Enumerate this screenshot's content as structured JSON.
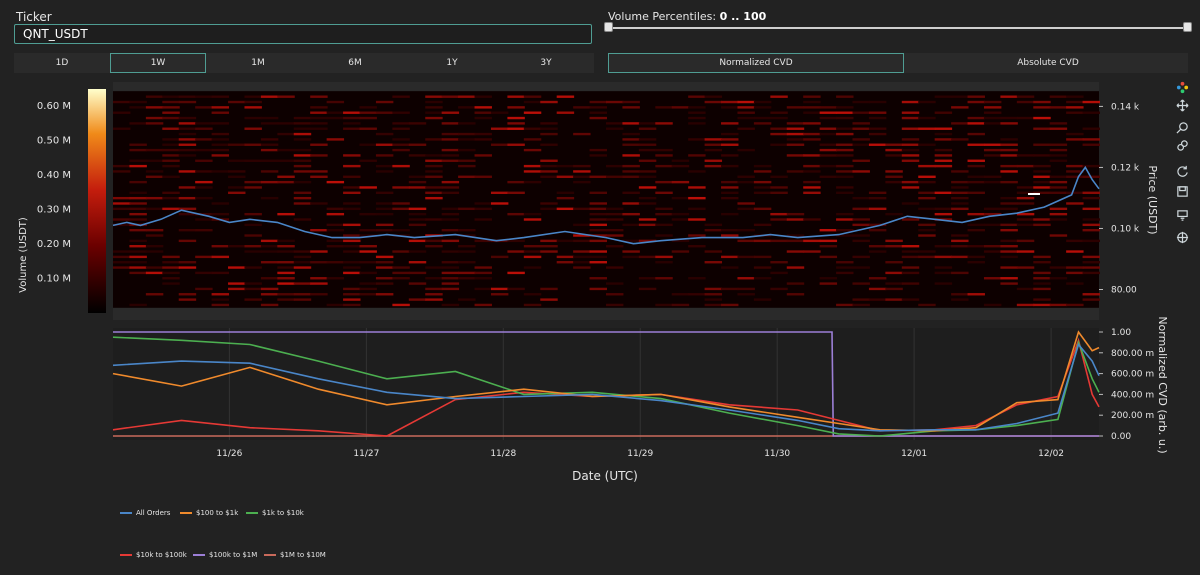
{
  "ticker": {
    "label": "Ticker",
    "value": "QNT_USDT"
  },
  "volume_filter": {
    "label": "Volume Percentiles: ",
    "range": "0 .. 100",
    "min": 0,
    "max": 100
  },
  "timeframes": [
    {
      "label": "1D",
      "active": false
    },
    {
      "label": "1W",
      "active": true
    },
    {
      "label": "1M",
      "active": false
    },
    {
      "label": "6M",
      "active": false
    },
    {
      "label": "1Y",
      "active": false
    },
    {
      "label": "3Y",
      "active": false
    }
  ],
  "cvd_modes": [
    {
      "label": "Normalized CVD",
      "active": true
    },
    {
      "label": "Absolute CVD",
      "active": false
    }
  ],
  "toolbar_icons": [
    "plotly-logo-icon",
    "pan-icon",
    "zoom-icon",
    "reset-zoom-icon",
    "autoscale-icon",
    "save-image-icon",
    "hover-compare-icon",
    "crosshair-icon"
  ],
  "colors": {
    "accent": "#4f9d93",
    "price_line": "#4a86c8",
    "background": "#222222",
    "heatmap_dark": "#000000",
    "heatmap_hot": "#b01a10"
  },
  "chart_data": [
    {
      "type": "heatmap",
      "colorbar": {
        "title": "Volume (USDT)",
        "ticks": [
          "0.10 M",
          "0.20 M",
          "0.30 M",
          "0.40 M",
          "0.50 M",
          "0.60 M"
        ],
        "tick_values": [
          0.1,
          0.2,
          0.3,
          0.4,
          0.5,
          0.6
        ]
      },
      "ylabel": "Price (USDT)",
      "y_ticks": [
        "80.00",
        "0.10 k",
        "0.12 k",
        "0.14 k"
      ],
      "y_tick_values": [
        80,
        100,
        120,
        140
      ],
      "ylim": [
        70,
        148
      ],
      "price_series": {
        "name": "Price",
        "x": [
          0,
          0.1,
          0.2,
          0.35,
          0.5,
          0.7,
          0.85,
          1.0,
          1.2,
          1.4,
          1.6,
          1.8,
          2.0,
          2.2,
          2.5,
          2.8,
          3.0,
          3.3,
          3.6,
          3.8,
          4.0,
          4.3,
          4.6,
          4.8,
          5.0,
          5.3,
          5.6,
          5.8,
          6.0,
          6.2,
          6.4,
          6.6,
          6.8,
          6.9,
          7.0,
          7.05,
          7.1,
          7.15,
          7.2
        ],
        "y": [
          101,
          102,
          101,
          103,
          106,
          104,
          102,
          103,
          102,
          99,
          97,
          97,
          98,
          97,
          98,
          96,
          97,
          99,
          97,
          95,
          96,
          97,
          97,
          98,
          97,
          98,
          101,
          104,
          103,
          102,
          104,
          105,
          107,
          109,
          111,
          117,
          120,
          116,
          113
        ]
      }
    },
    {
      "type": "line",
      "ylabel": "Normalized CVD (arb. u.)",
      "xlabel": "Date (UTC)",
      "x_ticks": [
        "11/26",
        "11/27",
        "11/28",
        "11/29",
        "11/30",
        "12/01",
        "12/02"
      ],
      "y_ticks": [
        "0.00",
        "200.00 m",
        "400.00 m",
        "600.00 m",
        "800.00 m",
        "1.00"
      ],
      "y_tick_values": [
        0,
        0.2,
        0.4,
        0.6,
        0.8,
        1.0
      ],
      "ylim": [
        -0.05,
        1.03
      ],
      "series": [
        {
          "name": "All Orders",
          "color": "#4a86c8",
          "x": [
            0,
            0.5,
            1.0,
            1.5,
            2.0,
            2.5,
            3.0,
            3.5,
            4.0,
            4.5,
            5.0,
            5.3,
            5.6,
            6.0,
            6.3,
            6.6,
            6.9,
            7.05,
            7.15,
            7.2
          ],
          "y": [
            0.68,
            0.72,
            0.7,
            0.55,
            0.42,
            0.36,
            0.38,
            0.4,
            0.34,
            0.25,
            0.15,
            0.07,
            0.05,
            0.06,
            0.06,
            0.12,
            0.22,
            0.88,
            0.72,
            0.58
          ]
        },
        {
          "name": "$100 to $1k",
          "color": "#f08a2c",
          "x": [
            0,
            0.5,
            1.0,
            1.5,
            2.0,
            2.5,
            3.0,
            3.5,
            4.0,
            4.5,
            5.0,
            5.3,
            5.6,
            6.0,
            6.3,
            6.6,
            6.9,
            7.05,
            7.15,
            7.2
          ],
          "y": [
            0.6,
            0.48,
            0.66,
            0.45,
            0.3,
            0.38,
            0.45,
            0.38,
            0.4,
            0.28,
            0.18,
            0.12,
            0.06,
            0.05,
            0.08,
            0.32,
            0.35,
            1.0,
            0.82,
            0.85
          ]
        },
        {
          "name": "$1k to $10k",
          "color": "#4caf50",
          "x": [
            0,
            0.5,
            1.0,
            1.5,
            2.0,
            2.5,
            3.0,
            3.5,
            4.0,
            4.5,
            5.0,
            5.3,
            5.6,
            6.0,
            6.3,
            6.6,
            6.9,
            7.05,
            7.15,
            7.2
          ],
          "y": [
            0.95,
            0.92,
            0.88,
            0.72,
            0.55,
            0.62,
            0.4,
            0.42,
            0.36,
            0.22,
            0.1,
            0.02,
            0.0,
            0.05,
            0.06,
            0.1,
            0.16,
            0.9,
            0.55,
            0.42
          ]
        },
        {
          "name": "$10k to $100k",
          "color": "#e53935",
          "x": [
            0,
            0.5,
            1.0,
            1.5,
            2.0,
            2.5,
            3.0,
            3.5,
            4.0,
            4.5,
            5.0,
            5.3,
            5.6,
            6.0,
            6.3,
            6.6,
            6.9,
            7.05,
            7.15,
            7.2
          ],
          "y": [
            0.06,
            0.15,
            0.08,
            0.05,
            0.0,
            0.35,
            0.42,
            0.38,
            0.4,
            0.3,
            0.25,
            0.15,
            0.05,
            0.06,
            0.1,
            0.3,
            0.38,
            0.92,
            0.4,
            0.28
          ]
        },
        {
          "name": "$100k to $1M",
          "color": "#9c7fd6",
          "x": [
            0,
            5.25,
            5.26,
            7.2
          ],
          "y": [
            1.0,
            1.0,
            0.0,
            0.0
          ]
        },
        {
          "name": "$1M to $10M",
          "color": "#c96a5b",
          "x": [
            0,
            7.2
          ],
          "y": [
            0.0,
            0.0
          ]
        }
      ]
    }
  ]
}
